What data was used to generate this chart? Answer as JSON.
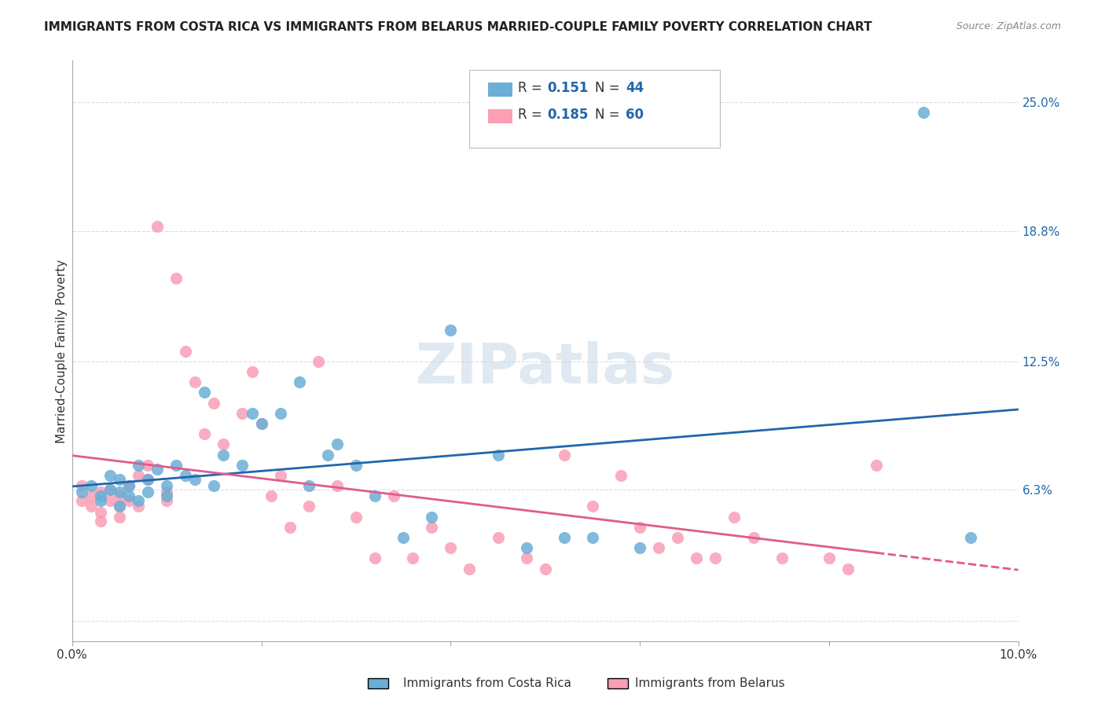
{
  "title": "IMMIGRANTS FROM COSTA RICA VS IMMIGRANTS FROM BELARUS MARRIED-COUPLE FAMILY POVERTY CORRELATION CHART",
  "source": "Source: ZipAtlas.com",
  "ylabel": "Married-Couple Family Poverty",
  "xlim": [
    0.0,
    0.1
  ],
  "ylim": [
    -0.01,
    0.27
  ],
  "xticks": [
    0.0,
    0.02,
    0.04,
    0.06,
    0.08,
    0.1
  ],
  "xticklabels": [
    "0.0%",
    "",
    "",
    "",
    "",
    "10.0%"
  ],
  "ytick_positions": [
    0.0,
    0.063,
    0.125,
    0.188,
    0.25
  ],
  "ytick_labels": [
    "",
    "6.3%",
    "12.5%",
    "18.8%",
    "25.0%"
  ],
  "background_color": "#ffffff",
  "grid_color": "#dddddd",
  "watermark": "ZIPatlas",
  "legend_r1": "0.151",
  "legend_n1": "44",
  "legend_r2": "0.185",
  "legend_n2": "60",
  "color_blue": "#6baed6",
  "color_pink": "#fa9fb5",
  "color_blue_dark": "#2166ac",
  "color_pink_dark": "#e05c8a",
  "costa_rica_x": [
    0.001,
    0.002,
    0.003,
    0.003,
    0.004,
    0.004,
    0.005,
    0.005,
    0.005,
    0.006,
    0.006,
    0.007,
    0.007,
    0.008,
    0.008,
    0.009,
    0.01,
    0.01,
    0.011,
    0.012,
    0.013,
    0.014,
    0.015,
    0.016,
    0.018,
    0.019,
    0.02,
    0.022,
    0.024,
    0.025,
    0.027,
    0.028,
    0.03,
    0.032,
    0.035,
    0.038,
    0.04,
    0.045,
    0.048,
    0.052,
    0.055,
    0.06,
    0.09,
    0.095
  ],
  "costa_rica_y": [
    0.062,
    0.065,
    0.06,
    0.058,
    0.063,
    0.07,
    0.055,
    0.062,
    0.068,
    0.06,
    0.065,
    0.058,
    0.075,
    0.062,
    0.068,
    0.073,
    0.065,
    0.06,
    0.075,
    0.07,
    0.068,
    0.11,
    0.065,
    0.08,
    0.075,
    0.1,
    0.095,
    0.1,
    0.115,
    0.065,
    0.08,
    0.085,
    0.075,
    0.06,
    0.04,
    0.05,
    0.14,
    0.08,
    0.035,
    0.04,
    0.04,
    0.035,
    0.245,
    0.04
  ],
  "belarus_x": [
    0.001,
    0.001,
    0.002,
    0.002,
    0.003,
    0.003,
    0.003,
    0.004,
    0.004,
    0.005,
    0.005,
    0.005,
    0.006,
    0.006,
    0.007,
    0.007,
    0.008,
    0.008,
    0.009,
    0.01,
    0.01,
    0.011,
    0.012,
    0.013,
    0.014,
    0.015,
    0.016,
    0.018,
    0.019,
    0.02,
    0.021,
    0.022,
    0.023,
    0.025,
    0.026,
    0.028,
    0.03,
    0.032,
    0.034,
    0.036,
    0.038,
    0.04,
    0.042,
    0.045,
    0.048,
    0.05,
    0.052,
    0.055,
    0.058,
    0.06,
    0.062,
    0.064,
    0.066,
    0.068,
    0.07,
    0.072,
    0.075,
    0.08,
    0.082,
    0.085
  ],
  "belarus_y": [
    0.058,
    0.065,
    0.06,
    0.055,
    0.062,
    0.052,
    0.048,
    0.063,
    0.058,
    0.055,
    0.06,
    0.05,
    0.065,
    0.058,
    0.07,
    0.055,
    0.075,
    0.068,
    0.19,
    0.062,
    0.058,
    0.165,
    0.13,
    0.115,
    0.09,
    0.105,
    0.085,
    0.1,
    0.12,
    0.095,
    0.06,
    0.07,
    0.045,
    0.055,
    0.125,
    0.065,
    0.05,
    0.03,
    0.06,
    0.03,
    0.045,
    0.035,
    0.025,
    0.04,
    0.03,
    0.025,
    0.08,
    0.055,
    0.07,
    0.045,
    0.035,
    0.04,
    0.03,
    0.03,
    0.05,
    0.04,
    0.03,
    0.03,
    0.025,
    0.075
  ]
}
